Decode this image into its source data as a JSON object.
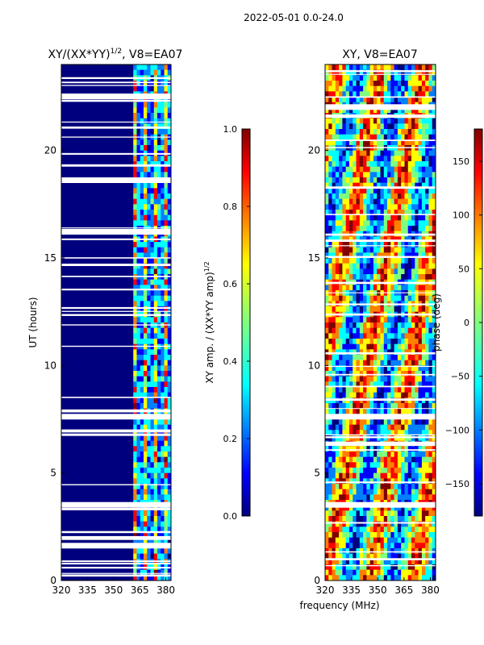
{
  "suptitle": "2022-05-01 0.0-24.0",
  "chart_data": [
    {
      "type": "heatmap",
      "title": "XY/(XX*YY)^1/2, V8=EA07",
      "title_main": "XY/(XX*YY)",
      "title_exp": "1/2",
      "title_tail": ", V8=EA07",
      "xlabel": "",
      "ylabel": "UT (hours)",
      "xlim": [
        320,
        383
      ],
      "ylim": [
        0,
        24
      ],
      "xticks": [
        320,
        335,
        350,
        365,
        380
      ],
      "yticks": [
        0,
        5,
        10,
        15,
        20
      ],
      "colorbar": {
        "label": "XY amp. / (XX*YY amp)^1/2",
        "label_main": "XY amp. / (XX*YY amp)",
        "label_exp": "1/2",
        "range": [
          0.0,
          1.0
        ],
        "ticks": [
          "0.0",
          "0.2",
          "0.4",
          "0.6",
          "0.8",
          "1.0"
        ]
      },
      "colormap": "jet",
      "gaps_ut": [
        3.5,
        1.6,
        7.6,
        18.6,
        16.2,
        22.5
      ]
    },
    {
      "type": "heatmap",
      "title": "XY, V8=EA07",
      "xlabel": "frequency (MHz)",
      "ylabel": "",
      "xlim": [
        320,
        383
      ],
      "ylim": [
        0,
        24
      ],
      "xticks": [
        320,
        335,
        350,
        365,
        380
      ],
      "yticks": [
        0,
        5,
        10,
        15,
        20
      ],
      "colorbar": {
        "label": "phase (deg)",
        "range": [
          -180,
          180
        ],
        "ticks": [
          "150",
          "100",
          "50",
          "0",
          "−50",
          "−100",
          "−150"
        ]
      },
      "colormap": "jet",
      "gaps_ut": [
        3.5,
        7.6,
        22.0
      ]
    }
  ],
  "colors": {
    "jet": [
      "#00007f",
      "#0000ff",
      "#007fff",
      "#00ffff",
      "#7fff7f",
      "#ffff00",
      "#ff7f00",
      "#ff0000",
      "#7f0000"
    ]
  }
}
